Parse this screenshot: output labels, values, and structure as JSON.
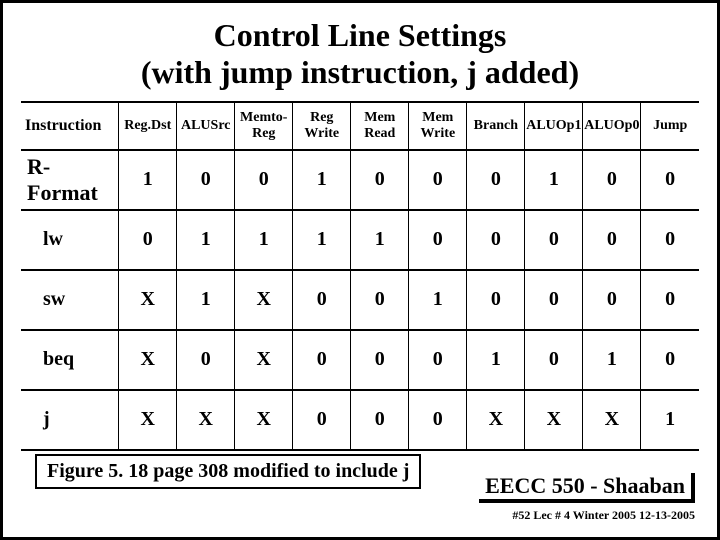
{
  "title_line1": "Control Line Settings",
  "title_line2": "(with jump instruction, j added)",
  "columns": [
    "Instruction",
    "Reg.Dst",
    "ALUSrc",
    "Memto-\nReg",
    "Reg\nWrite",
    "Mem\nRead",
    "Mem\nWrite",
    "Branch",
    "ALUOp1",
    "ALUOp0",
    "Jump"
  ],
  "rows": [
    [
      "R-Format",
      "1",
      "0",
      "0",
      "1",
      "0",
      "0",
      "0",
      "1",
      "0",
      "0"
    ],
    [
      "lw",
      "0",
      "1",
      "1",
      "1",
      "1",
      "0",
      "0",
      "0",
      "0",
      "0"
    ],
    [
      "sw",
      "X",
      "1",
      "X",
      "0",
      "0",
      "1",
      "0",
      "0",
      "0",
      "0"
    ],
    [
      "beq",
      "X",
      "0",
      "X",
      "0",
      "0",
      "0",
      "1",
      "0",
      "1",
      "0"
    ],
    [
      "j",
      "X",
      "X",
      "X",
      "0",
      "0",
      "0",
      "X",
      "X",
      "X",
      "1"
    ]
  ],
  "caption": "Figure 5. 18 page 308 modified to include j",
  "footer_course": "EECC 550 - Shaaban",
  "footer_meta": "#52   Lec # 4   Winter 2005  12-13-2005",
  "colors": {
    "text": "#000000",
    "background": "#ffffff",
    "border": "#000000"
  }
}
